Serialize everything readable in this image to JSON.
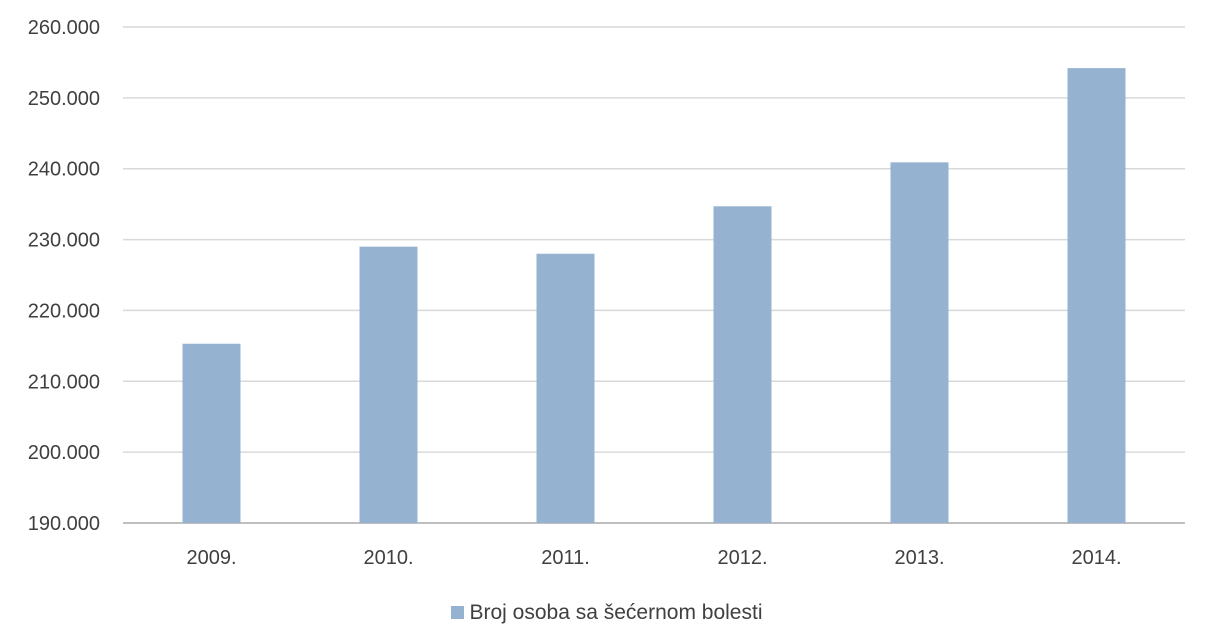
{
  "chart_data": {
    "type": "bar",
    "title": "",
    "xlabel": "",
    "ylabel": "",
    "categories": [
      "2009.",
      "2010.",
      "2011.",
      "2012.",
      "2013.",
      "2014."
    ],
    "series": [
      {
        "name": "Broj osoba sa šećernom bolesti",
        "values": [
          215300,
          229000,
          228000,
          234700,
          240900,
          254200
        ]
      }
    ],
    "ylim": [
      190000,
      260000
    ],
    "y_ticks": [
      190000,
      200000,
      210000,
      220000,
      230000,
      240000,
      250000,
      260000
    ],
    "y_tick_labels": [
      "190.000",
      "200.000",
      "210.000",
      "220.000",
      "230.000",
      "240.000",
      "250.000",
      "260.000"
    ],
    "grid": true,
    "legend_position": "bottom",
    "colors": {
      "bar": "#95B3D0",
      "grid": "#D9D9D9",
      "axis": "#BFBFBF",
      "text": "#404040"
    }
  }
}
